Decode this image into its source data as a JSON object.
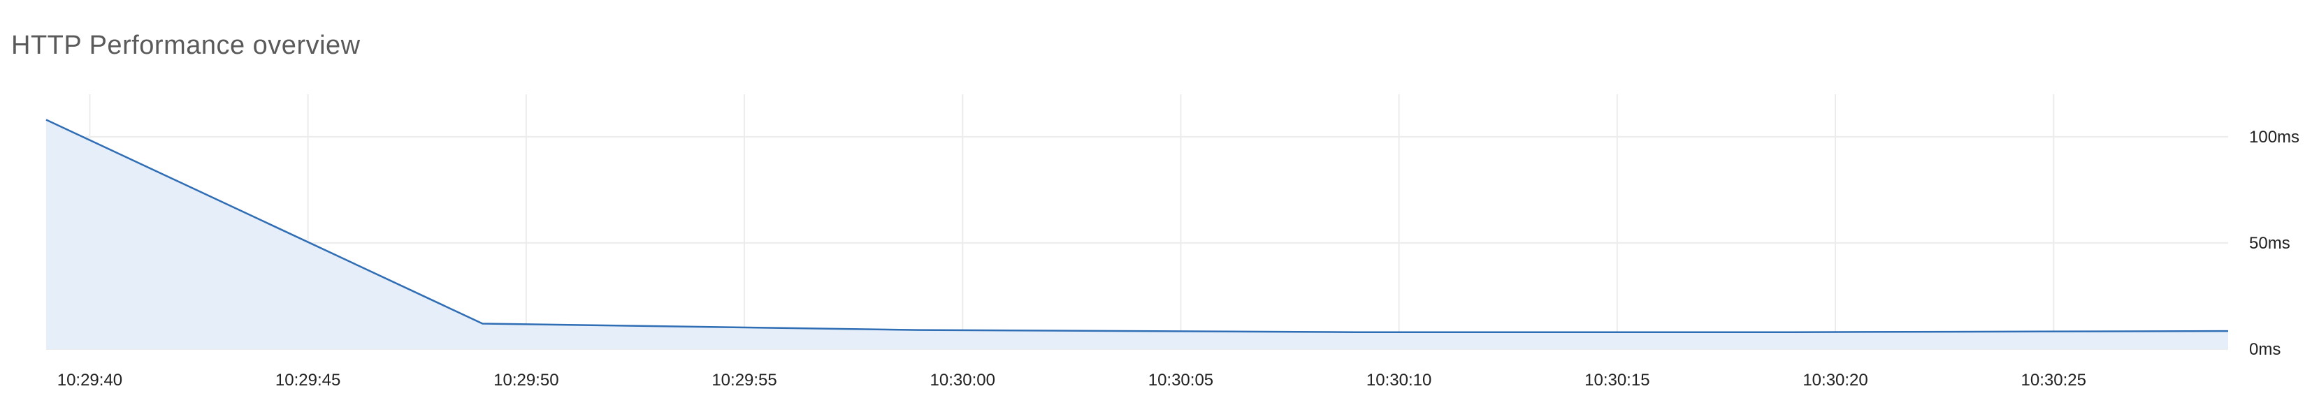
{
  "panel": {
    "title": "HTTP Performance overview"
  },
  "chart_data": {
    "type": "area",
    "title": "HTTP Performance overview",
    "xlabel": "",
    "ylabel": "",
    "x_unit": "time",
    "y_unit": "ms",
    "x_ticks": [
      "10:29:40",
      "10:29:45",
      "10:29:50",
      "10:29:55",
      "10:30:00",
      "10:30:05",
      "10:30:10",
      "10:30:15",
      "10:30:20",
      "10:30:25"
    ],
    "y_ticks": [
      "0ms",
      "50ms",
      "100ms"
    ],
    "xlim": [
      "10:29:39",
      "10:30:29"
    ],
    "ylim": [
      0,
      120
    ],
    "grid": true,
    "legend": "none",
    "series": [
      {
        "x": [
          "10:29:39",
          "10:29:49",
          "10:29:59",
          "10:30:09",
          "10:30:19",
          "10:30:29"
        ],
        "values": [
          108,
          12,
          9,
          8,
          8,
          8.5
        ]
      }
    ],
    "colors": {
      "line": "#2f6db5",
      "fill": "#e6eef9",
      "grid": "#ececec",
      "axis_text": "#222222",
      "title": "#5a5a5a"
    }
  }
}
